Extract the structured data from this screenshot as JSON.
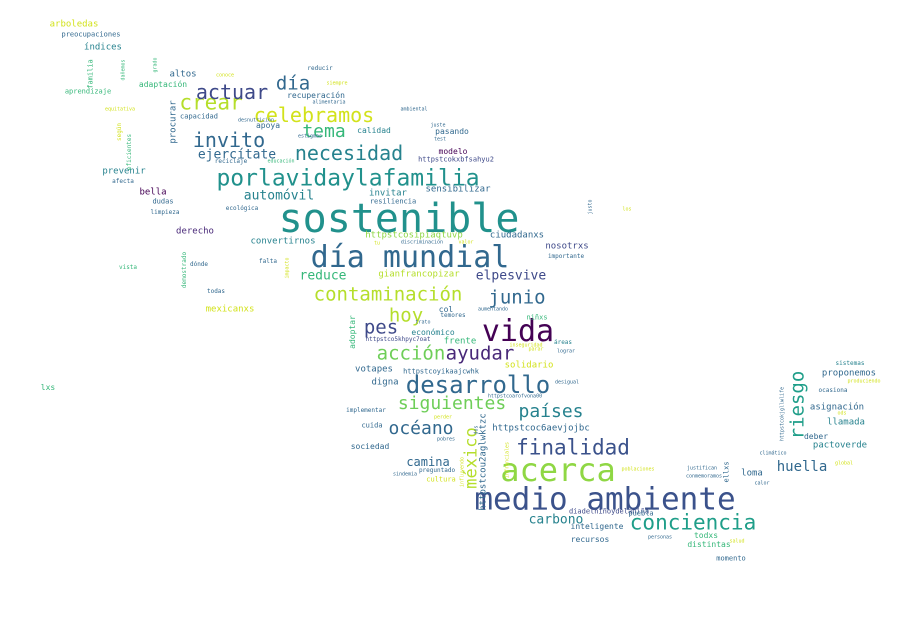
{
  "words": [
    {
      "text": "sostenible",
      "color": "#21918c"
    },
    {
      "text": "día mundial",
      "color": "#31688e"
    },
    {
      "text": "medio ambiente",
      "color": "#3b528b"
    },
    {
      "text": "acerca",
      "color": "#8fd744"
    },
    {
      "text": "vida",
      "color": "#440154"
    },
    {
      "text": "porlavidaylafamilia",
      "color": "#21918c"
    },
    {
      "text": "desarrollo",
      "color": "#31688e"
    },
    {
      "text": "contaminación",
      "color": "#b5de2b"
    },
    {
      "text": "conciencia",
      "color": "#1f9e89"
    },
    {
      "text": "finalidad",
      "color": "#3b528b"
    },
    {
      "text": "celebramos",
      "color": "#d2e21b"
    },
    {
      "text": "crear",
      "color": "#b5de2b"
    },
    {
      "text": "actuar",
      "color": "#3e4989"
    },
    {
      "text": "día",
      "color": "#31688e"
    },
    {
      "text": "necesidad",
      "color": "#26828e"
    },
    {
      "text": "invito",
      "color": "#31688e"
    },
    {
      "text": "tema",
      "color": "#35b779"
    },
    {
      "text": "junio",
      "color": "#31688e"
    },
    {
      "text": "hoy",
      "color": "#b5de2b"
    },
    {
      "text": "ayudar",
      "color": "#482878"
    },
    {
      "text": "acción",
      "color": "#6ece58"
    },
    {
      "text": "pes",
      "color": "#3e4989"
    },
    {
      "text": "siguientes",
      "color": "#6ece58"
    },
    {
      "text": "países",
      "color": "#26828e"
    },
    {
      "text": "océano",
      "color": "#31688e"
    },
    {
      "text": "riesgo",
      "color": "#1f9e89"
    },
    {
      "text": "méxico",
      "color": "#b5de2b"
    },
    {
      "text": "huella",
      "color": "#31688e"
    },
    {
      "text": "carbono",
      "color": "#26828e"
    },
    {
      "text": "camina",
      "color": "#31688e"
    },
    {
      "text": "ejercítate",
      "color": "#31688e"
    },
    {
      "text": "automóvil",
      "color": "#26828e"
    },
    {
      "text": "elpesvive",
      "color": "#3e4989"
    },
    {
      "text": "reduce",
      "color": "#35b779"
    },
    {
      "text": "gianfrancopizar",
      "color": "#b5de2b"
    },
    {
      "text": "httpstcosipiaqtuvp",
      "color": "#8fd744"
    },
    {
      "text": "ciudadanxs",
      "color": "#31688e"
    },
    {
      "text": "nosotrxs",
      "color": "#3e4989"
    },
    {
      "text": "convertirnos",
      "color": "#26828e"
    },
    {
      "text": "derecho",
      "color": "#482878"
    },
    {
      "text": "invitar",
      "color": "#26828e"
    },
    {
      "text": "resiliencia",
      "color": "#31688e"
    },
    {
      "text": "sensibilizar",
      "color": "#31688e"
    },
    {
      "text": "httpstcokxbfsahyu2",
      "color": "#3e4989"
    },
    {
      "text": "modelo",
      "color": "#440154"
    },
    {
      "text": "pasando",
      "color": "#31688e"
    },
    {
      "text": "calidad",
      "color": "#26828e"
    },
    {
      "text": "apoya",
      "color": "#31688e"
    },
    {
      "text": "recuperación",
      "color": "#31688e"
    },
    {
      "text": "procurar",
      "color": "#31688e"
    },
    {
      "text": "altos",
      "color": "#31688e"
    },
    {
      "text": "adaptación",
      "color": "#35b779"
    },
    {
      "text": "índices",
      "color": "#26828e"
    },
    {
      "text": "preocupaciones",
      "color": "#31688e"
    },
    {
      "text": "arboledas",
      "color": "#d2e21b"
    },
    {
      "text": "familia",
      "color": "#35b779"
    },
    {
      "text": "aprendizaje",
      "color": "#35b779"
    },
    {
      "text": "prevenir",
      "color": "#26828e"
    },
    {
      "text": "bella",
      "color": "#440154"
    },
    {
      "text": "dudas",
      "color": "#31688e"
    },
    {
      "text": "limpieza",
      "color": "#31688e"
    },
    {
      "text": "afecta",
      "color": "#31688e"
    },
    {
      "text": "eficientes",
      "color": "#35b779"
    },
    {
      "text": "según",
      "color": "#d2e21b"
    },
    {
      "text": "capacidad",
      "color": "#31688e"
    },
    {
      "text": "reciclaje",
      "color": "#31688e"
    },
    {
      "text": "ecológica",
      "color": "#31688e"
    },
    {
      "text": "mexicanxs",
      "color": "#d2e21b"
    },
    {
      "text": "todas",
      "color": "#31688e"
    },
    {
      "text": "dónde",
      "color": "#31688e"
    },
    {
      "text": "demostrado",
      "color": "#35b779"
    },
    {
      "text": "vista",
      "color": "#35b779"
    },
    {
      "text": "lxs",
      "color": "#35b779"
    },
    {
      "text": "falta",
      "color": "#31688e"
    },
    {
      "text": "col",
      "color": "#31688e"
    },
    {
      "text": "temores",
      "color": "#31688e"
    },
    {
      "text": "económico",
      "color": "#26828e"
    },
    {
      "text": "frente",
      "color": "#35b779"
    },
    {
      "text": "adoptar",
      "color": "#35b779"
    },
    {
      "text": "httpstco5khpyc7oat",
      "color": "#3e4989"
    },
    {
      "text": "votapes",
      "color": "#31688e"
    },
    {
      "text": "digna",
      "color": "#31688e"
    },
    {
      "text": "httpstcoyikaajcwhk",
      "color": "#31688e"
    },
    {
      "text": "implementar",
      "color": "#31688e"
    },
    {
      "text": "cuida",
      "color": "#31688e"
    },
    {
      "text": "sociedad",
      "color": "#31688e"
    },
    {
      "text": "httpstcoc6aevjojbc",
      "color": "#31688e"
    },
    {
      "text": "httpstcou2aglwktzc",
      "color": "#31688e"
    },
    {
      "text": "inteligente",
      "color": "#31688e"
    },
    {
      "text": "recursos",
      "color": "#31688e"
    },
    {
      "text": "diadelniñoydelaniña",
      "color": "#3e4989"
    },
    {
      "text": "todxs",
      "color": "#35b779"
    },
    {
      "text": "distintas",
      "color": "#35b779"
    },
    {
      "text": "momento",
      "color": "#31688e"
    },
    {
      "text": "loma",
      "color": "#31688e"
    },
    {
      "text": "ellxs",
      "color": "#31688e"
    },
    {
      "text": "puebla",
      "color": "#31688e"
    },
    {
      "text": "llamada",
      "color": "#26828e"
    },
    {
      "text": "pactoverde",
      "color": "#26828e"
    },
    {
      "text": "deber",
      "color": "#31688e"
    },
    {
      "text": "asignación",
      "color": "#31688e"
    },
    {
      "text": "proponemos",
      "color": "#31688e"
    },
    {
      "text": "sistemas",
      "color": "#26828e"
    },
    {
      "text": "ocasiona",
      "color": "#31688e"
    },
    {
      "text": "solidario",
      "color": "#d2e21b"
    },
    {
      "text": "niñxs",
      "color": "#35b779"
    },
    {
      "text": "áreas",
      "color": "#26828e"
    },
    {
      "text": "importante",
      "color": "#31688e"
    },
    {
      "text": "cultura",
      "color": "#d2e21b"
    },
    {
      "text": "preguntado",
      "color": "#31688e"
    },
    {
      "text": "reducir",
      "color": "#31688e"
    },
    {
      "text": "alimentaria",
      "color": "#31688e"
    },
    {
      "text": "educación",
      "color": "#35b779"
    },
    {
      "text": "estigmas",
      "color": "#31688e"
    },
    {
      "text": "desnutrición",
      "color": "#31688e"
    },
    {
      "text": "test",
      "color": "#31688e"
    },
    {
      "text": "juste",
      "color": "#31688e"
    },
    {
      "text": "conoce",
      "color": "#d2e21b"
    },
    {
      "text": "equitativa",
      "color": "#d2e21b"
    },
    {
      "text": "impacto",
      "color": "#d2e21b"
    },
    {
      "text": "grado",
      "color": "#35b779"
    },
    {
      "text": "dañemos",
      "color": "#35b779"
    },
    {
      "text": "ambiental",
      "color": "#31688e"
    },
    {
      "text": "aumentando",
      "color": "#31688e"
    },
    {
      "text": "trato",
      "color": "#31688e"
    },
    {
      "text": "lograr",
      "color": "#31688e"
    },
    {
      "text": "desigual",
      "color": "#31688e"
    },
    {
      "text": "perder",
      "color": "#d2e21b"
    },
    {
      "text": "pobres",
      "color": "#31688e"
    },
    {
      "text": "poblaciones",
      "color": "#d2e21b"
    },
    {
      "text": "justifican",
      "color": "#31688e"
    },
    {
      "text": "conmemoramos",
      "color": "#31688e"
    },
    {
      "text": "calor",
      "color": "#31688e"
    },
    {
      "text": "climático",
      "color": "#31688e"
    },
    {
      "text": "personas",
      "color": "#31688e"
    },
    {
      "text": "salud",
      "color": "#d2e21b"
    },
    {
      "text": "global",
      "color": "#d2e21b"
    },
    {
      "text": "produciendo",
      "color": "#d2e21b"
    },
    {
      "text": "ods",
      "color": "#d2e21b"
    },
    {
      "text": "httpstcokjgllwlife",
      "color": "#31688e"
    },
    {
      "text": "httpstcoarofvona00",
      "color": "#31688e"
    },
    {
      "text": "inseguridad",
      "color": "#d2e21b"
    },
    {
      "text": "parar",
      "color": "#d2e21b"
    },
    {
      "text": "siempre",
      "color": "#d2e21b"
    },
    {
      "text": "discriminación",
      "color": "#31688e"
    },
    {
      "text": "tu",
      "color": "#d2e21b"
    },
    {
      "text": "influyendo",
      "color": "#d2e21b"
    },
    {
      "text": "justo",
      "color": "#31688e"
    },
    {
      "text": "los",
      "color": "#d2e21b"
    },
    {
      "text": "infrenciales",
      "color": "#d2e21b"
    },
    {
      "text": "dos",
      "color": "#31688e"
    },
    {
      "text": "valor",
      "color": "#d2e21b"
    },
    {
      "text": "sindemia",
      "color": "#31688e"
    }
  ]
}
